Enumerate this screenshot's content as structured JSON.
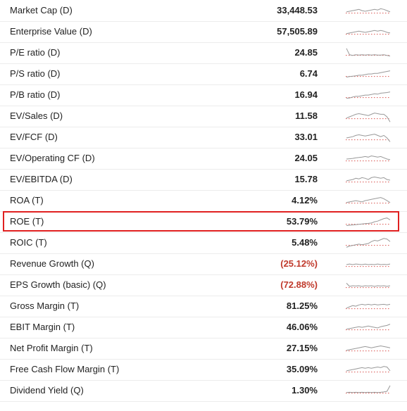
{
  "metrics": [
    {
      "label": "Market Cap (D)",
      "value": "33,448.53",
      "negative": false,
      "trend": [
        0.55,
        0.5,
        0.45,
        0.4,
        0.35,
        0.45,
        0.5,
        0.45,
        0.4,
        0.35,
        0.4,
        0.3,
        0.35,
        0.45,
        0.55
      ]
    },
    {
      "label": "Enterprise Value (D)",
      "value": "57,505.89",
      "negative": false,
      "trend": [
        0.6,
        0.55,
        0.5,
        0.45,
        0.4,
        0.45,
        0.5,
        0.45,
        0.4,
        0.35,
        0.4,
        0.35,
        0.4,
        0.5,
        0.55
      ]
    },
    {
      "label": "P/E ratio (D)",
      "value": "24.85",
      "negative": false,
      "trend": [
        0.1,
        0.6,
        0.65,
        0.6,
        0.62,
        0.6,
        0.63,
        0.6,
        0.62,
        0.6,
        0.63,
        0.62,
        0.6,
        0.65,
        0.7
      ]
    },
    {
      "label": "P/S ratio (D)",
      "value": "6.74",
      "negative": false,
      "trend": [
        0.7,
        0.65,
        0.62,
        0.6,
        0.55,
        0.55,
        0.5,
        0.45,
        0.45,
        0.4,
        0.4,
        0.35,
        0.3,
        0.25,
        0.2
      ]
    },
    {
      "label": "P/B ratio (D)",
      "value": "16.94",
      "negative": false,
      "trend": [
        0.7,
        0.68,
        0.6,
        0.55,
        0.55,
        0.5,
        0.45,
        0.45,
        0.4,
        0.35,
        0.38,
        0.3,
        0.28,
        0.25,
        0.2
      ]
    },
    {
      "label": "EV/Sales (D)",
      "value": "11.58",
      "negative": false,
      "trend": [
        0.6,
        0.5,
        0.4,
        0.3,
        0.25,
        0.3,
        0.35,
        0.4,
        0.3,
        0.2,
        0.25,
        0.3,
        0.3,
        0.5,
        0.9
      ]
    },
    {
      "label": "EV/FCF (D)",
      "value": "33.01",
      "negative": false,
      "trend": [
        0.5,
        0.45,
        0.4,
        0.3,
        0.25,
        0.3,
        0.35,
        0.3,
        0.25,
        0.2,
        0.3,
        0.4,
        0.3,
        0.5,
        0.8
      ]
    },
    {
      "label": "EV/Operating CF (D)",
      "value": "24.05",
      "negative": false,
      "trend": [
        0.5,
        0.48,
        0.45,
        0.4,
        0.38,
        0.35,
        0.3,
        0.35,
        0.25,
        0.3,
        0.35,
        0.3,
        0.4,
        0.5,
        0.55
      ]
    },
    {
      "label": "EV/EBITDA (D)",
      "value": "15.78",
      "negative": false,
      "trend": [
        0.55,
        0.5,
        0.45,
        0.35,
        0.4,
        0.3,
        0.35,
        0.45,
        0.3,
        0.25,
        0.3,
        0.35,
        0.3,
        0.45,
        0.5
      ]
    },
    {
      "label": "ROA (T)",
      "value": "4.12%",
      "negative": false,
      "trend": [
        0.6,
        0.55,
        0.5,
        0.45,
        0.5,
        0.55,
        0.45,
        0.4,
        0.35,
        0.3,
        0.25,
        0.2,
        0.3,
        0.45,
        0.6
      ]
    },
    {
      "label": "ROE (T)",
      "value": "53.79%",
      "negative": false,
      "trend": [
        0.75,
        0.72,
        0.7,
        0.68,
        0.65,
        0.62,
        0.6,
        0.58,
        0.55,
        0.45,
        0.4,
        0.3,
        0.2,
        0.15,
        0.3
      ]
    },
    {
      "label": "ROIC (T)",
      "value": "5.48%",
      "negative": false,
      "trend": [
        0.8,
        0.7,
        0.65,
        0.6,
        0.55,
        0.6,
        0.55,
        0.5,
        0.35,
        0.25,
        0.3,
        0.2,
        0.1,
        0.15,
        0.35
      ]
    },
    {
      "label": "Revenue Growth (Q)",
      "value": "(25.12%)",
      "negative": true,
      "trend": [
        0.5,
        0.45,
        0.5,
        0.45,
        0.48,
        0.5,
        0.46,
        0.5,
        0.48,
        0.5,
        0.45,
        0.5,
        0.48,
        0.5,
        0.45
      ]
    },
    {
      "label": "EPS Growth (basic) (Q)",
      "value": "(72.88%)",
      "negative": true,
      "trend": [
        0.3,
        0.55,
        0.5,
        0.52,
        0.5,
        0.55,
        0.5,
        0.52,
        0.5,
        0.55,
        0.5,
        0.52,
        0.5,
        0.55,
        0.5
      ]
    },
    {
      "label": "Gross Margin (T)",
      "value": "81.25%",
      "negative": false,
      "trend": [
        0.6,
        0.5,
        0.4,
        0.45,
        0.35,
        0.3,
        0.35,
        0.3,
        0.35,
        0.3,
        0.35,
        0.32,
        0.3,
        0.35,
        0.3
      ]
    },
    {
      "label": "EBIT Margin (T)",
      "value": "46.06%",
      "negative": false,
      "trend": [
        0.6,
        0.55,
        0.5,
        0.45,
        0.4,
        0.45,
        0.4,
        0.35,
        0.4,
        0.45,
        0.5,
        0.4,
        0.35,
        0.3,
        0.2
      ]
    },
    {
      "label": "Net Profit Margin (T)",
      "value": "27.15%",
      "negative": false,
      "trend": [
        0.6,
        0.55,
        0.5,
        0.45,
        0.4,
        0.35,
        0.3,
        0.35,
        0.4,
        0.35,
        0.3,
        0.25,
        0.3,
        0.35,
        0.4
      ]
    },
    {
      "label": "Free Cash Flow Margin (T)",
      "value": "35.09%",
      "negative": false,
      "trend": [
        0.55,
        0.5,
        0.45,
        0.4,
        0.35,
        0.3,
        0.35,
        0.3,
        0.35,
        0.3,
        0.25,
        0.3,
        0.2,
        0.25,
        0.55
      ]
    },
    {
      "label": "Dividend Yield (Q)",
      "value": "1.30%",
      "negative": false,
      "trend": [
        0.6,
        0.58,
        0.6,
        0.58,
        0.6,
        0.58,
        0.6,
        0.58,
        0.6,
        0.58,
        0.6,
        0.58,
        0.55,
        0.5,
        0.05
      ]
    }
  ],
  "highlighted_label": "ROE (T)",
  "colors": {
    "negative_value": "#c0392b",
    "sparkline": "#999999",
    "baseline": "#d9534f",
    "highlight_border": "#e02020"
  }
}
